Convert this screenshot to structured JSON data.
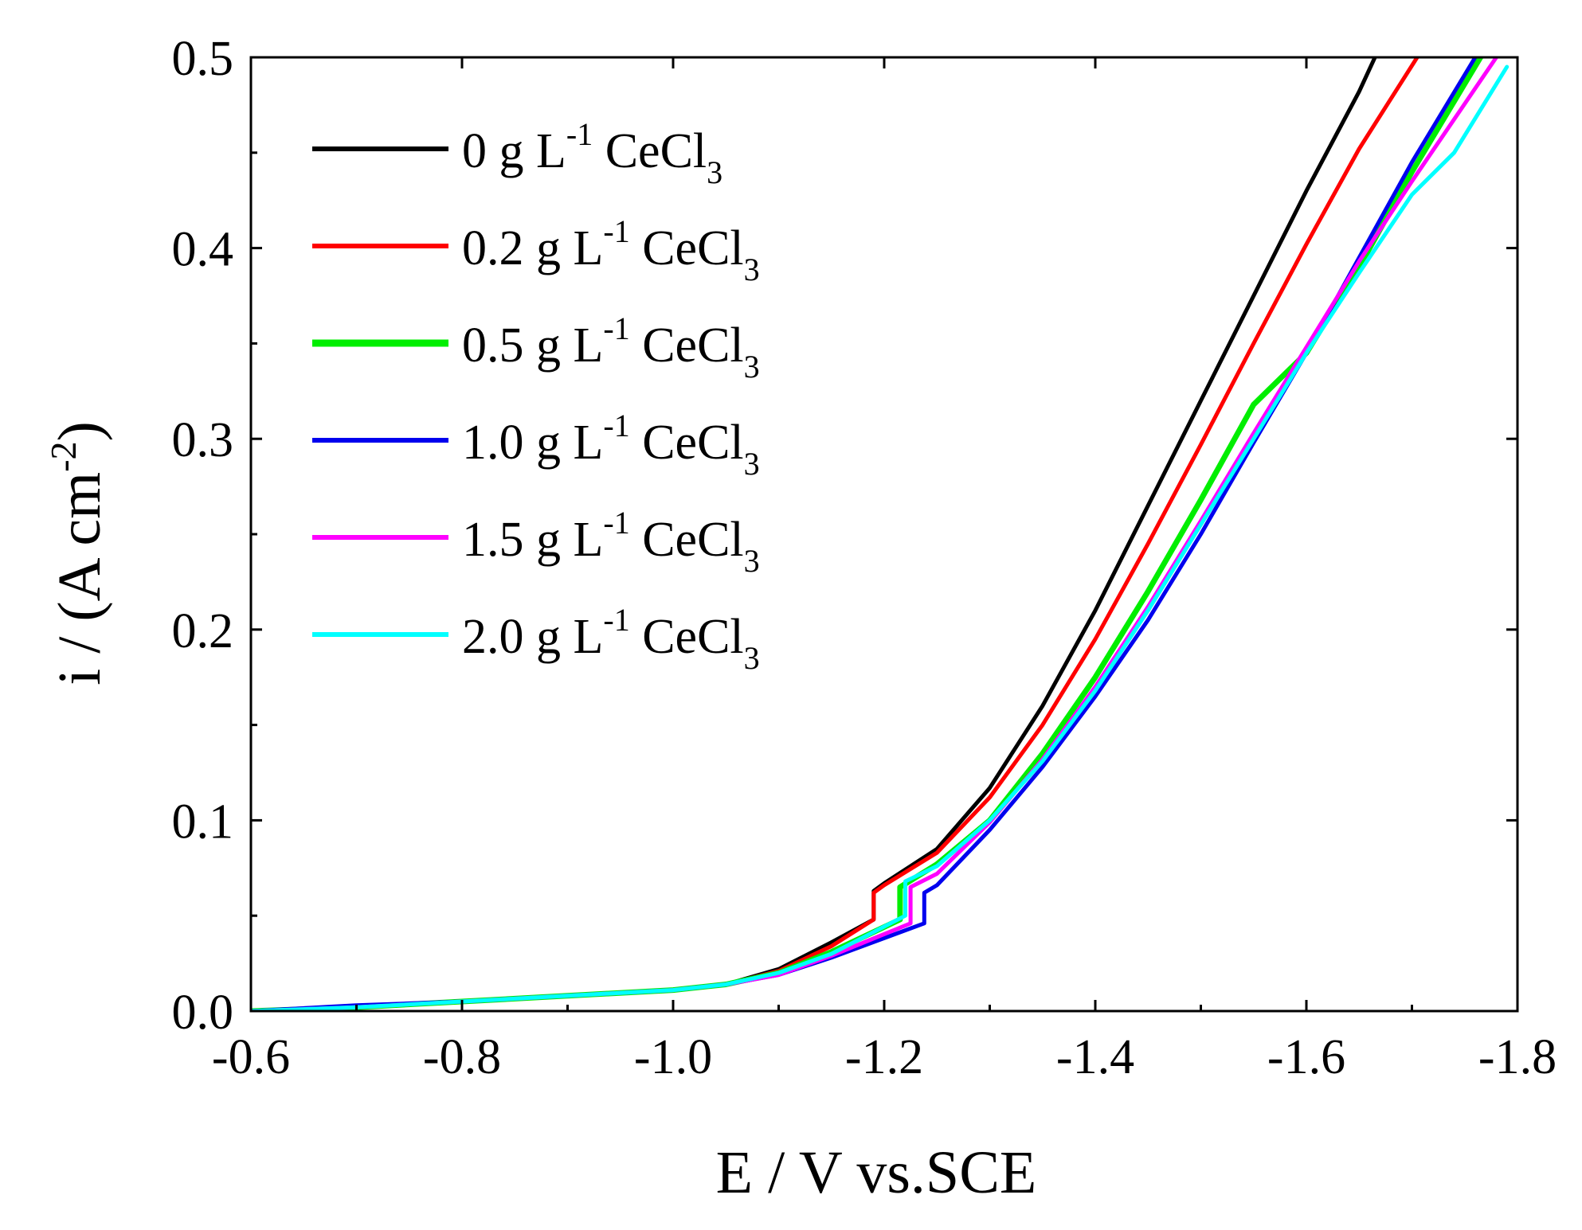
{
  "chart_data": {
    "type": "line",
    "title": "",
    "xlabel": "E  / V vs.SCE",
    "ylabel_main": "i  /  (A cm",
    "ylabel_sup": "-2",
    "ylabel_close": ")",
    "xlim": [
      -0.6,
      -1.8
    ],
    "ylim": [
      0.0,
      0.5
    ],
    "xticks": [
      -0.6,
      -0.8,
      -1.0,
      -1.2,
      -1.4,
      -1.6,
      -1.8
    ],
    "xtick_labels": [
      "-0.6",
      "-0.8",
      "-1.0",
      "-1.2",
      "-1.4",
      "-1.6",
      "-1.8"
    ],
    "yticks": [
      0.0,
      0.1,
      0.2,
      0.3,
      0.4,
      0.5
    ],
    "ytick_labels": [
      "0.0",
      "0.1",
      "0.2",
      "0.3",
      "0.4",
      "0.5"
    ],
    "grid": false,
    "legend_position": "top-left",
    "series": [
      {
        "name": "0 g L-1 CeCl3",
        "legend": {
          "pre": "0 g L",
          "sup": "-1",
          "mid": " CeCl",
          "sub": "3"
        },
        "color": "#000000",
        "points": [
          [
            -0.6,
            0.0
          ],
          [
            -0.7,
            0.002
          ],
          [
            -0.8,
            0.005
          ],
          [
            -0.9,
            0.008
          ],
          [
            -1.0,
            0.011
          ],
          [
            -1.05,
            0.014
          ],
          [
            -1.1,
            0.022
          ],
          [
            -1.15,
            0.036
          ],
          [
            -1.19,
            0.048
          ],
          [
            -1.19,
            0.063
          ],
          [
            -1.2,
            0.067
          ],
          [
            -1.25,
            0.085
          ],
          [
            -1.3,
            0.117
          ],
          [
            -1.35,
            0.16
          ],
          [
            -1.4,
            0.21
          ],
          [
            -1.45,
            0.265
          ],
          [
            -1.5,
            0.32
          ],
          [
            -1.55,
            0.375
          ],
          [
            -1.6,
            0.43
          ],
          [
            -1.65,
            0.482
          ],
          [
            -1.665,
            0.5
          ]
        ]
      },
      {
        "name": "0.2 g L-1 CeCl3",
        "legend": {
          "pre": "0.2 g L",
          "sup": "-1",
          "mid": " CeCl",
          "sub": "3"
        },
        "color": "#ff0000",
        "points": [
          [
            -0.6,
            0.0
          ],
          [
            -0.7,
            0.002
          ],
          [
            -0.8,
            0.005
          ],
          [
            -0.9,
            0.008
          ],
          [
            -1.0,
            0.011
          ],
          [
            -1.05,
            0.014
          ],
          [
            -1.1,
            0.021
          ],
          [
            -1.15,
            0.034
          ],
          [
            -1.19,
            0.048
          ],
          [
            -1.19,
            0.062
          ],
          [
            -1.2,
            0.066
          ],
          [
            -1.25,
            0.083
          ],
          [
            -1.3,
            0.112
          ],
          [
            -1.35,
            0.15
          ],
          [
            -1.4,
            0.195
          ],
          [
            -1.45,
            0.245
          ],
          [
            -1.5,
            0.297
          ],
          [
            -1.55,
            0.35
          ],
          [
            -1.6,
            0.402
          ],
          [
            -1.65,
            0.452
          ],
          [
            -1.705,
            0.5
          ]
        ]
      },
      {
        "name": "0.5 g L-1 CeCl3",
        "legend": {
          "pre": "0.5 g L",
          "sup": "-1",
          "mid": " CeCl",
          "sub": "3"
        },
        "color": "#00ee00",
        "points": [
          [
            -0.6,
            0.0
          ],
          [
            -0.7,
            0.002
          ],
          [
            -0.8,
            0.005
          ],
          [
            -0.9,
            0.008
          ],
          [
            -1.0,
            0.011
          ],
          [
            -1.05,
            0.014
          ],
          [
            -1.1,
            0.02
          ],
          [
            -1.15,
            0.031
          ],
          [
            -1.215,
            0.048
          ],
          [
            -1.215,
            0.065
          ],
          [
            -1.25,
            0.077
          ],
          [
            -1.3,
            0.1
          ],
          [
            -1.35,
            0.135
          ],
          [
            -1.4,
            0.175
          ],
          [
            -1.45,
            0.22
          ],
          [
            -1.5,
            0.268
          ],
          [
            -1.55,
            0.318
          ],
          [
            -1.6,
            0.345
          ],
          [
            -1.65,
            0.39
          ],
          [
            -1.7,
            0.44
          ],
          [
            -1.765,
            0.5
          ]
        ]
      },
      {
        "name": "1.0 g L-1 CeCl3",
        "legend": {
          "pre": "1.0 g L",
          "sup": "-1",
          "mid": " CeCl",
          "sub": "3"
        },
        "color": "#0000ee",
        "points": [
          [
            -0.6,
            0.0
          ],
          [
            -0.7,
            0.003
          ],
          [
            -0.75,
            0.004
          ],
          [
            -0.8,
            0.005
          ],
          [
            -0.9,
            0.008
          ],
          [
            -1.0,
            0.011
          ],
          [
            -1.05,
            0.014
          ],
          [
            -1.1,
            0.019
          ],
          [
            -1.15,
            0.028
          ],
          [
            -1.238,
            0.046
          ],
          [
            -1.238,
            0.062
          ],
          [
            -1.25,
            0.066
          ],
          [
            -1.3,
            0.095
          ],
          [
            -1.35,
            0.128
          ],
          [
            -1.4,
            0.165
          ],
          [
            -1.45,
            0.205
          ],
          [
            -1.5,
            0.25
          ],
          [
            -1.55,
            0.298
          ],
          [
            -1.6,
            0.345
          ],
          [
            -1.65,
            0.395
          ],
          [
            -1.7,
            0.445
          ],
          [
            -1.76,
            0.5
          ]
        ]
      },
      {
        "name": "1.5 g L-1 CeCl3",
        "legend": {
          "pre": "1.5 g L",
          "sup": "-1",
          "mid": " CeCl",
          "sub": "3"
        },
        "color": "#ff00ff",
        "points": [
          [
            -0.6,
            0.0
          ],
          [
            -0.7,
            0.002
          ],
          [
            -0.8,
            0.005
          ],
          [
            -0.9,
            0.008
          ],
          [
            -1.0,
            0.011
          ],
          [
            -1.05,
            0.014
          ],
          [
            -1.1,
            0.019
          ],
          [
            -1.15,
            0.029
          ],
          [
            -1.225,
            0.046
          ],
          [
            -1.225,
            0.065
          ],
          [
            -1.25,
            0.072
          ],
          [
            -1.3,
            0.099
          ],
          [
            -1.35,
            0.132
          ],
          [
            -1.4,
            0.17
          ],
          [
            -1.45,
            0.212
          ],
          [
            -1.5,
            0.257
          ],
          [
            -1.55,
            0.303
          ],
          [
            -1.6,
            0.348
          ],
          [
            -1.65,
            0.393
          ],
          [
            -1.7,
            0.435
          ],
          [
            -1.78,
            0.5
          ]
        ]
      },
      {
        "name": "2.0 g L-1 CeCl3",
        "legend": {
          "pre": "2.0 g L",
          "sup": "-1",
          "mid": " CeCl",
          "sub": "3"
        },
        "color": "#00ffff",
        "points": [
          [
            -0.6,
            0.0
          ],
          [
            -0.7,
            0.002
          ],
          [
            -0.8,
            0.005
          ],
          [
            -0.9,
            0.008
          ],
          [
            -1.0,
            0.011
          ],
          [
            -1.05,
            0.014
          ],
          [
            -1.1,
            0.02
          ],
          [
            -1.15,
            0.03
          ],
          [
            -1.22,
            0.05
          ],
          [
            -1.22,
            0.068
          ],
          [
            -1.25,
            0.076
          ],
          [
            -1.3,
            0.1
          ],
          [
            -1.35,
            0.131
          ],
          [
            -1.4,
            0.168
          ],
          [
            -1.45,
            0.21
          ],
          [
            -1.5,
            0.255
          ],
          [
            -1.55,
            0.3
          ],
          [
            -1.6,
            0.345
          ],
          [
            -1.65,
            0.387
          ],
          [
            -1.7,
            0.428
          ],
          [
            -1.74,
            0.45
          ],
          [
            -1.79,
            0.495
          ]
        ]
      }
    ]
  }
}
